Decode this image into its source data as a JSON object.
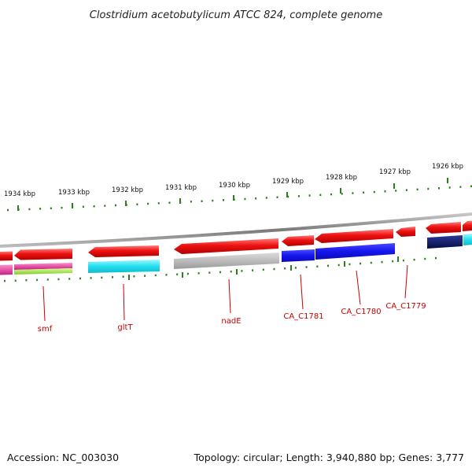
{
  "title": "Clostridium acetobutylicum ATCC 824, complete genome",
  "footer": {
    "accession": "Accession: NC_003030",
    "summary": "Topology: circular; Length: 3,940,880 bp; Genes: 3,777"
  },
  "scale": {
    "unit": "kbp",
    "ticks": [
      {
        "kbp": 1934,
        "label": "1934 kbp"
      },
      {
        "kbp": 1933,
        "label": "1933 kbp"
      },
      {
        "kbp": 1932,
        "label": "1932 kbp"
      },
      {
        "kbp": 1931,
        "label": "1931 kbp"
      },
      {
        "kbp": 1930,
        "label": "1930 kbp"
      },
      {
        "kbp": 1929,
        "label": "1929 kbp"
      },
      {
        "kbp": 1928,
        "label": "1928 kbp"
      },
      {
        "kbp": 1927,
        "label": "1927 kbp"
      },
      {
        "kbp": 1926,
        "label": "1926 kbp"
      }
    ]
  },
  "colors": {
    "backbone": "#8a8a8a",
    "gene_red": "#ee1111",
    "label_red": "#cc0000",
    "tick_green": "#2e7d1e",
    "magenta": "#e0389a",
    "lime": "#a6e84a",
    "cyan": "#22e0f0",
    "gray": "#b5b5b5",
    "blue": "#1515ee",
    "navy": "#0c1566"
  },
  "genes": [
    {
      "name": "smf"
    },
    {
      "name": "gltT"
    },
    {
      "name": "nadE"
    },
    {
      "name": "CA_C1781"
    },
    {
      "name": "CA_C1780"
    },
    {
      "name": "CA_C1779"
    }
  ]
}
